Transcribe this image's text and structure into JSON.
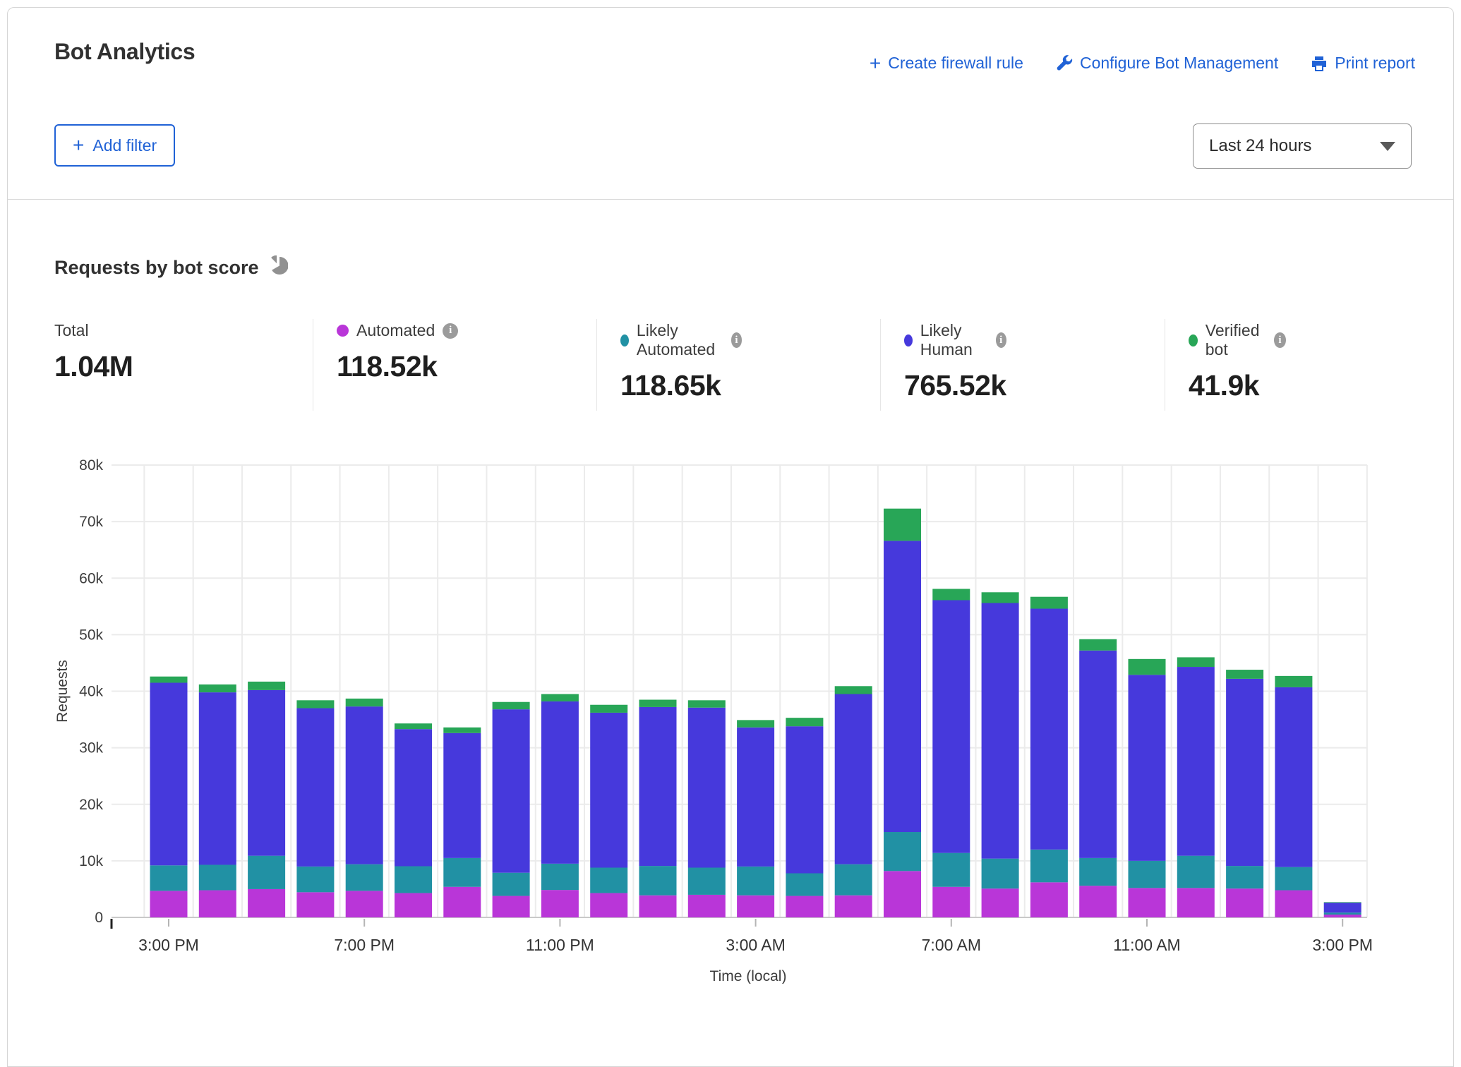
{
  "header": {
    "title": "Bot Analytics",
    "actions": [
      {
        "label": "Create firewall rule",
        "icon": "plus-icon"
      },
      {
        "label": "Configure Bot Management",
        "icon": "wrench-icon"
      },
      {
        "label": "Print report",
        "icon": "printer-icon"
      }
    ],
    "add_filter_label": "Add filter",
    "time_range_selected": "Last 24 hours"
  },
  "section": {
    "title": "Requests by bot score"
  },
  "stats": {
    "total": {
      "label": "Total",
      "value": "1.04M"
    },
    "series": [
      {
        "label": "Automated",
        "value": "118.52k",
        "color": "#b936d8"
      },
      {
        "label": "Likely Automated",
        "value": "118.65k",
        "color": "#2191a4"
      },
      {
        "label": "Likely Human",
        "value": "765.52k",
        "color": "#4639dc"
      },
      {
        "label": "Verified bot",
        "value": "41.9k",
        "color": "#28a657"
      }
    ]
  },
  "chart_data": {
    "type": "bar",
    "stacked": true,
    "title": "Requests by bot score",
    "xlabel": "Time (local)",
    "ylabel": "Requests",
    "ylim": [
      0,
      80000
    ],
    "grid": true,
    "legend_position": "top",
    "ytick_labels": [
      "0",
      "10k",
      "20k",
      "30k",
      "40k",
      "50k",
      "60k",
      "70k",
      "80k"
    ],
    "xtick_labels": [
      "3:00 PM",
      "7:00 PM",
      "11:00 PM",
      "3:00 AM",
      "7:00 AM",
      "11:00 AM",
      "3:00 PM"
    ],
    "xtick_positions": [
      0,
      4,
      8,
      12,
      16,
      20,
      24
    ],
    "categories": [
      "3:00 PM",
      "4:00 PM",
      "5:00 PM",
      "6:00 PM",
      "7:00 PM",
      "8:00 PM",
      "9:00 PM",
      "10:00 PM",
      "11:00 PM",
      "12:00 AM",
      "1:00 AM",
      "2:00 AM",
      "3:00 AM",
      "4:00 AM",
      "5:00 AM",
      "6:00 AM",
      "7:00 AM",
      "8:00 AM",
      "9:00 AM",
      "10:00 AM",
      "11:00 AM",
      "12:00 PM",
      "1:00 PM",
      "2:00 PM",
      "3:00 PM"
    ],
    "series": [
      {
        "name": "Automated",
        "color": "#b936d8",
        "values": [
          4700,
          4800,
          5000,
          4450,
          4700,
          4300,
          5400,
          3800,
          4850,
          4300,
          3900,
          4000,
          3900,
          3800,
          3900,
          8200,
          5400,
          5100,
          6200,
          5600,
          5200,
          5200,
          5100,
          4800,
          500
        ]
      },
      {
        "name": "Likely Automated",
        "color": "#2191a4",
        "values": [
          4500,
          4500,
          5900,
          4550,
          4700,
          4750,
          5100,
          4100,
          4650,
          4500,
          5200,
          4800,
          5100,
          4000,
          5500,
          6900,
          6000,
          5300,
          5800,
          4900,
          4800,
          5700,
          4000,
          4100,
          350
        ]
      },
      {
        "name": "Likely Human",
        "color": "#4639dc",
        "values": [
          32300,
          30500,
          29300,
          28000,
          27900,
          24250,
          22100,
          28900,
          28700,
          27400,
          28100,
          28300,
          24600,
          26000,
          30100,
          51500,
          44700,
          45200,
          42600,
          36700,
          32900,
          33400,
          33100,
          31800,
          1750
        ]
      },
      {
        "name": "Verified bot",
        "color": "#28a657",
        "values": [
          1100,
          1400,
          1500,
          1400,
          1400,
          1000,
          1000,
          1300,
          1300,
          1400,
          1300,
          1300,
          1300,
          1500,
          1400,
          5700,
          2000,
          1900,
          2100,
          2000,
          2800,
          1700,
          1600,
          2000,
          100
        ]
      }
    ]
  }
}
